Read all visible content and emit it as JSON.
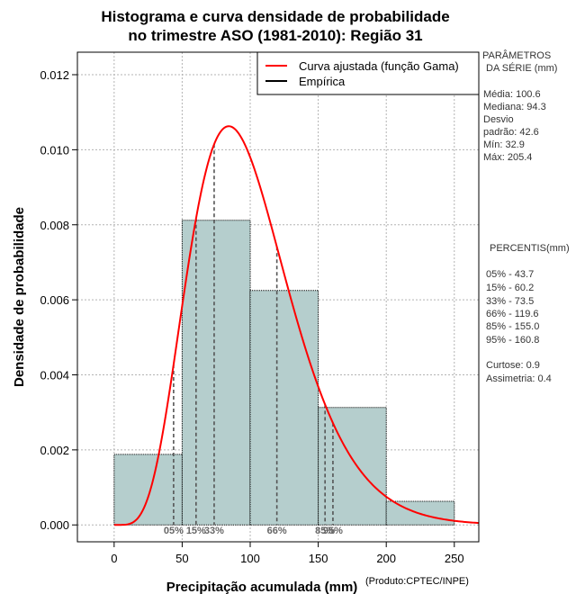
{
  "chart_data": {
    "type": "bar",
    "title_line1": "Histograma e curva densidade de probabilidade",
    "title_line2": "no trimestre ASO (1981-2010): Região 31",
    "xlabel": "Precipitação acumulada (mm)",
    "ylabel": "Densidade de probabilidade",
    "credit": "(Produto:CPTEC/INPE)",
    "xlim": [
      -27,
      268
    ],
    "ylim": [
      -0.00045,
      0.0126
    ],
    "x_ticks": [
      0,
      50,
      100,
      150,
      200,
      250
    ],
    "x_tick_labels": [
      "0",
      "50",
      "100",
      "150",
      "200",
      "250"
    ],
    "y_ticks": [
      0.0,
      0.002,
      0.004,
      0.006,
      0.008,
      0.01,
      0.012
    ],
    "y_tick_labels": [
      "0.000",
      "0.002",
      "0.004",
      "0.006",
      "0.008",
      "0.010",
      "0.012"
    ],
    "grid": true,
    "bins": [
      {
        "x0": 0,
        "x1": 50,
        "density": 0.00188
      },
      {
        "x0": 50,
        "x1": 100,
        "density": 0.00812
      },
      {
        "x0": 100,
        "x1": 150,
        "density": 0.00625
      },
      {
        "x0": 150,
        "x1": 200,
        "density": 0.00313
      },
      {
        "x0": 200,
        "x1": 250,
        "density": 0.00063
      }
    ],
    "bar_color": "#b5cecd",
    "gamma_fit": {
      "shape": 6.2,
      "scale": 16.2,
      "color": "#ff0000"
    },
    "percentile_lines": [
      {
        "label": "05%",
        "value": 43.7
      },
      {
        "label": "15%",
        "value": 60.2
      },
      {
        "label": "33%",
        "value": 73.5
      },
      {
        "label": "66%",
        "value": 119.6
      },
      {
        "label": "85%",
        "value": 155.0
      },
      {
        "label": "95%",
        "value": 160.8
      }
    ],
    "legend": {
      "position": "top-right",
      "entries": [
        {
          "label": "Curva ajustada (função Gama)",
          "color": "#ff0000"
        },
        {
          "label": "Empírica",
          "color": "#000000"
        }
      ]
    }
  },
  "side_panel": {
    "params_header1": "PARÂMETROS",
    "params_header2": "DA SÉRIE (mm)",
    "stats": [
      "Média:  100.6",
      "Mediana:  94.3",
      "Desvio",
      "padrão:  42.6",
      "Mín:  32.9",
      "Máx:  205.4"
    ],
    "percentis_header": "PERCENTIS(mm)",
    "percentis": [
      "05% -  43.7",
      "15% -  60.2",
      "33% -  73.5",
      "66% -  119.6",
      "85% -  155.0",
      "95% -  160.8"
    ],
    "curtose": "Curtose:  0.9",
    "assimetria": "Assimetria:  0.4"
  }
}
